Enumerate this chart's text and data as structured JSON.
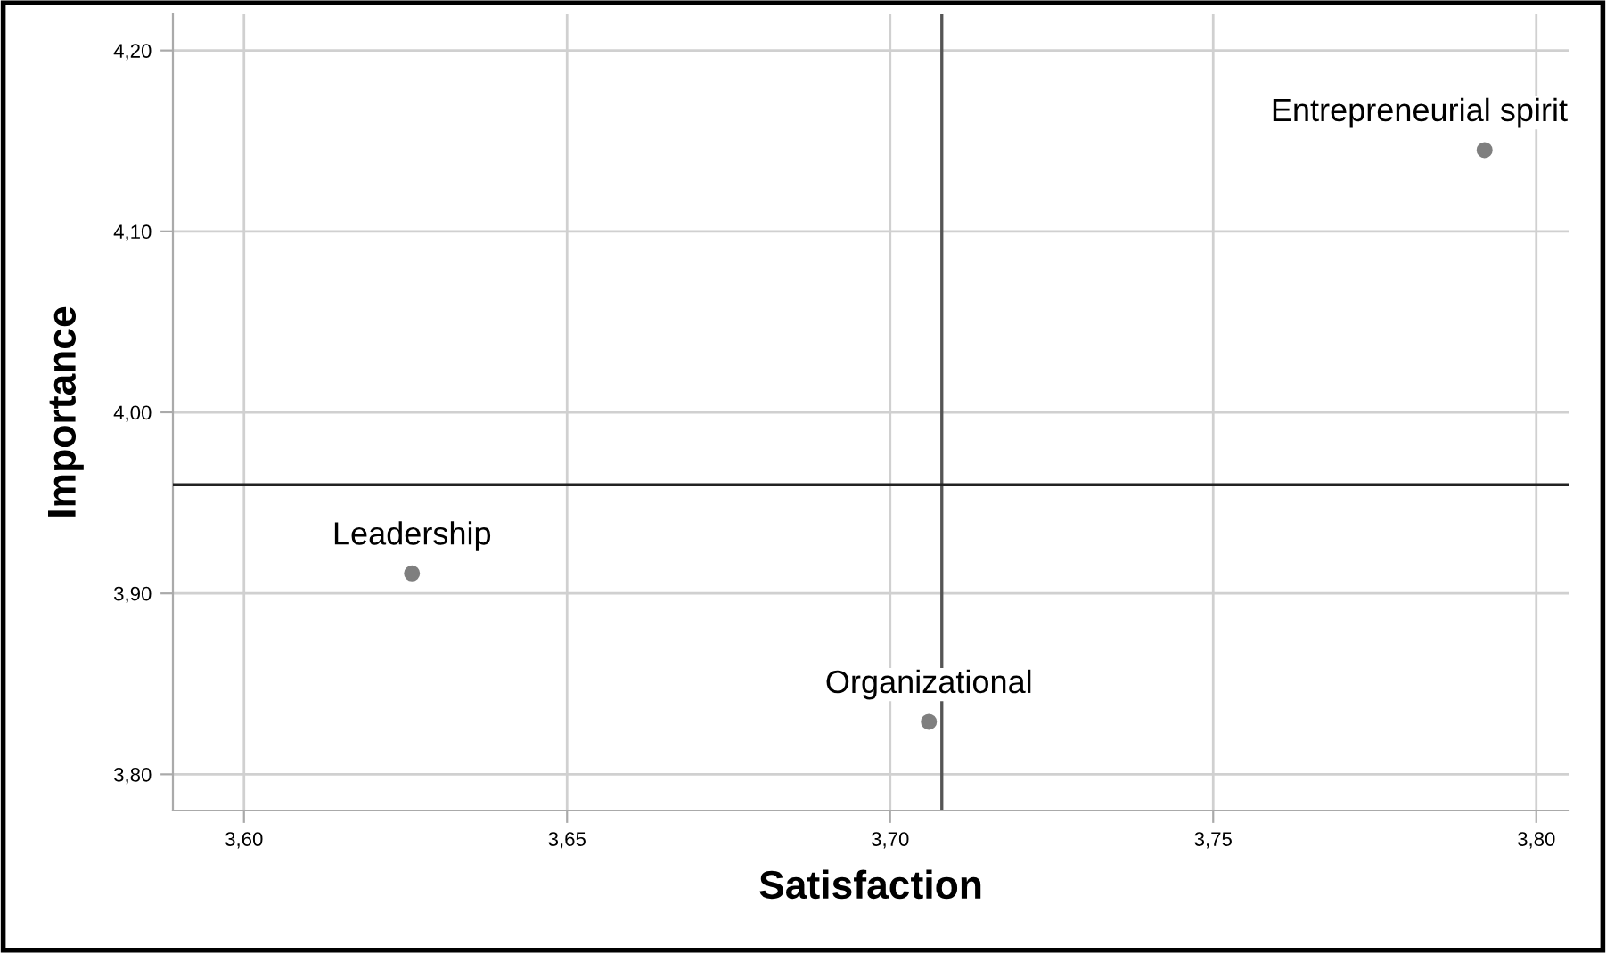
{
  "chart_data": {
    "type": "scatter",
    "xlabel": "Satisfaction",
    "ylabel": "Importance",
    "x": [
      3.626,
      3.706,
      3.792
    ],
    "values": [
      3.911,
      3.829,
      4.145
    ],
    "color": "#7f7f7f",
    "marker": "circle",
    "value_labels": [
      "Leadership",
      "Organizational",
      "Entrepreneurial spirit"
    ],
    "xlim": [
      3.589,
      3.805
    ],
    "ylim": [
      3.78,
      4.22
    ],
    "xticks": [
      {
        "value": 3.6,
        "label": "3,60"
      },
      {
        "value": 3.65,
        "label": "3,65"
      },
      {
        "value": 3.7,
        "label": "3,70"
      },
      {
        "value": 3.75,
        "label": "3,75"
      },
      {
        "value": 3.8,
        "label": "3,80"
      }
    ],
    "yticks": [
      {
        "value": 3.8,
        "label": "3,80"
      },
      {
        "value": 3.9,
        "label": "3,90"
      },
      {
        "value": 4.0,
        "label": "4,00"
      },
      {
        "value": 4.1,
        "label": "4,10"
      },
      {
        "value": 4.2,
        "label": "4,20"
      }
    ],
    "ref_lines": [
      {
        "axis": "x",
        "value": 3.708,
        "color": "#555555"
      },
      {
        "axis": "y",
        "value": 3.96,
        "color": "#222222"
      }
    ],
    "grid": true
  }
}
